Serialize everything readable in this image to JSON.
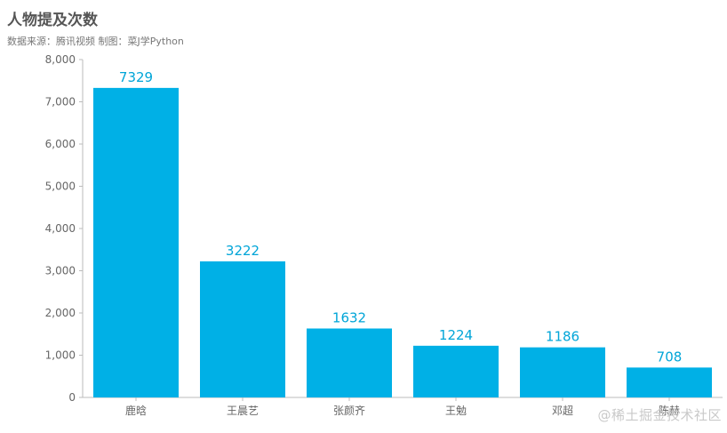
{
  "title": "人物提及次数",
  "subtitle": "数据来源：腾讯视频  制图：菜J学Python",
  "watermark": "@稀土掘金技术社区",
  "colors": {
    "bar": "#00b0e6",
    "label": "#00a5d8",
    "axis": "#bbbbbb",
    "tick_text": "#666666"
  },
  "chart_data": {
    "type": "bar",
    "title": "人物提及次数",
    "categories": [
      "鹿晗",
      "王晨艺",
      "张颜齐",
      "王勉",
      "邓超",
      "陈赫"
    ],
    "values": [
      7329,
      3222,
      1632,
      1224,
      1186,
      708
    ],
    "ylim": [
      0,
      8000
    ],
    "yticks": [
      0,
      1000,
      2000,
      3000,
      4000,
      5000,
      6000,
      7000,
      8000
    ],
    "ytick_labels": [
      "0",
      "1,000",
      "2,000",
      "3,000",
      "4,000",
      "5,000",
      "6,000",
      "7,000",
      "8,000"
    ],
    "xlabel": "",
    "ylabel": "",
    "grid": false,
    "data_labels": true
  }
}
